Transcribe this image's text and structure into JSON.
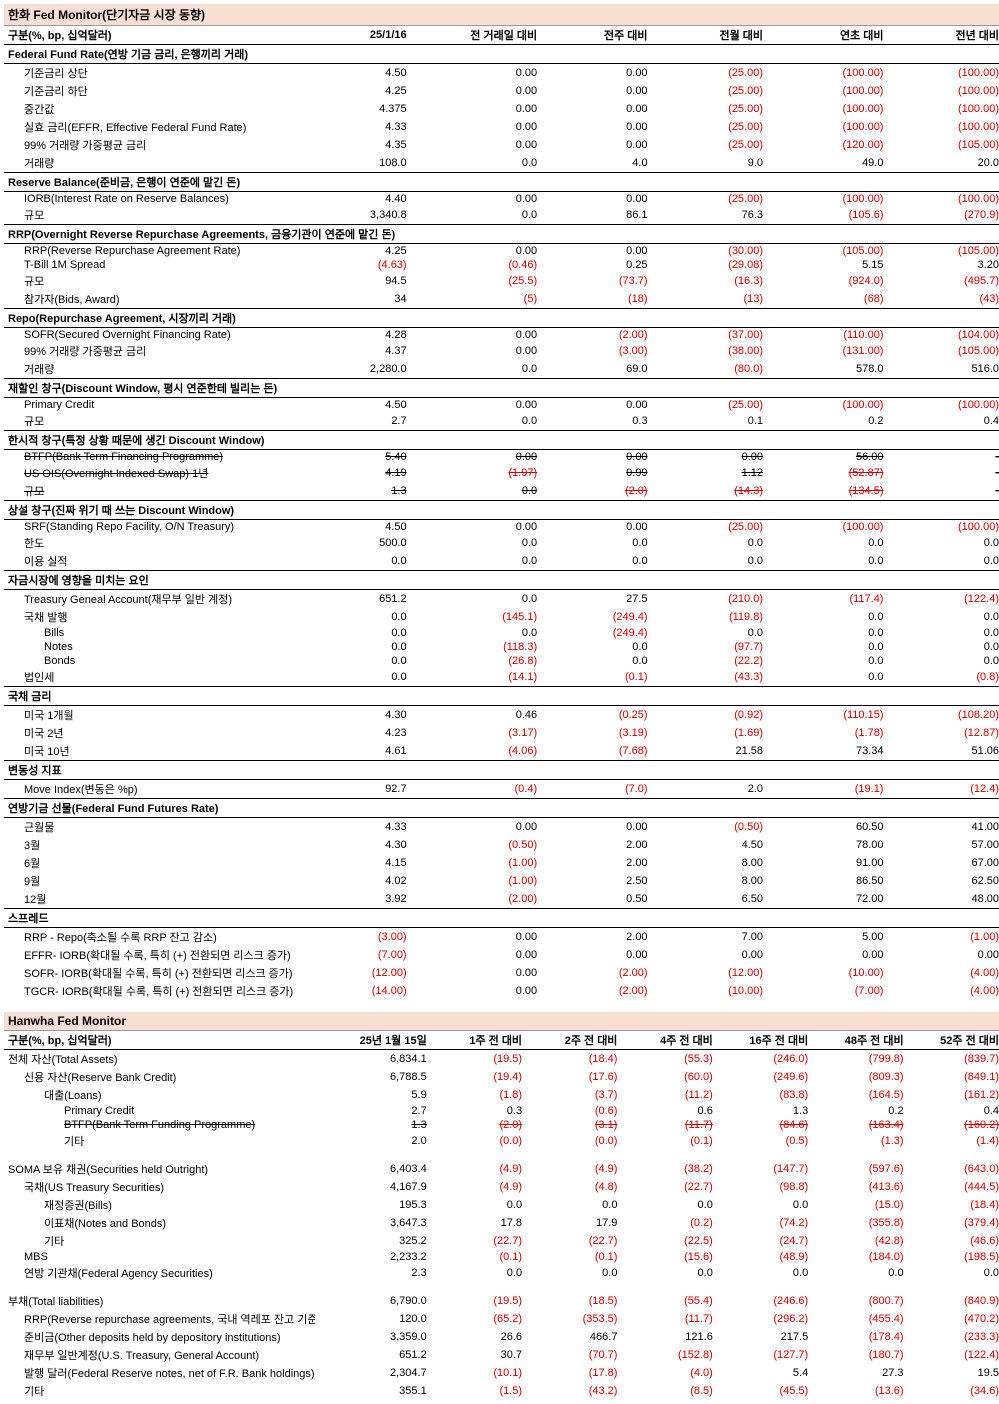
{
  "t1": {
    "title": "한화 Fed Monitor(단기자금 시장 동향)",
    "headers": [
      "구분(%, bp, 십억달러)",
      "25/1/16",
      "전 거래일 대비",
      "전주 대비",
      "전월 대비",
      "연초 대비",
      "전년 대비"
    ],
    "widths": [
      310,
      95,
      130,
      110,
      115,
      120,
      115
    ],
    "sections": [
      {
        "head": "Federal Fund Rate(연방 기금 금리, 은행끼리 거래)",
        "rows": [
          {
            "l": "기준금리 상단",
            "i": 1,
            "v": [
              "4.50",
              "0.00",
              "0.00",
              "(25.00)",
              "(100.00)",
              "(100.00)"
            ]
          },
          {
            "l": "기준금리 하단",
            "i": 1,
            "v": [
              "4.25",
              "0.00",
              "0.00",
              "(25.00)",
              "(100.00)",
              "(100.00)"
            ]
          },
          {
            "l": "중간값",
            "i": 1,
            "v": [
              "4.375",
              "0.00",
              "0.00",
              "(25.00)",
              "(100.00)",
              "(100.00)"
            ]
          },
          {
            "l": "실효 금리(EFFR, Effective Federal Fund Rate)",
            "i": 1,
            "v": [
              "4.33",
              "0.00",
              "0.00",
              "(25.00)",
              "(100.00)",
              "(100.00)"
            ]
          },
          {
            "l": "99% 거래량 가중평균 금리",
            "i": 1,
            "v": [
              "4.35",
              "0.00",
              "0.00",
              "(25.00)",
              "(120.00)",
              "(105.00)"
            ]
          },
          {
            "l": "거래량",
            "i": 1,
            "v": [
              "108.0",
              "0.0",
              "4.0",
              "9.0",
              "49.0",
              "20.0"
            ]
          }
        ]
      },
      {
        "head": "Reserve Balance(준비금, 은행이 연준에 맡긴 돈)",
        "rows": [
          {
            "l": "IORB(Interest Rate on Reserve Balances)",
            "i": 1,
            "v": [
              "4.40",
              "0.00",
              "0.00",
              "(25.00)",
              "(100.00)",
              "(100.00)"
            ]
          },
          {
            "l": "규모",
            "i": 1,
            "v": [
              "3,340.8",
              "0.0",
              "86.1",
              "76.3",
              "(105.6)",
              "(270.9)"
            ]
          }
        ]
      },
      {
        "head": "RRP(Overnight Reverse Repurchase Agreements, 금융기관이 연준에 맡긴 돈)",
        "rows": [
          {
            "l": "RRP(Reverse Repurchase Agreement Rate)",
            "i": 1,
            "v": [
              "4.25",
              "0.00",
              "0.00",
              "(30.00)",
              "(105.00)",
              "(105.00)"
            ]
          },
          {
            "l": "T-Bill 1M Spread",
            "i": 1,
            "v": [
              "(4.63)",
              "(0.46)",
              "0.25",
              "(29.08)",
              "5.15",
              "3.20"
            ]
          },
          {
            "l": "규모",
            "i": 1,
            "v": [
              "94.5",
              "(25.5)",
              "(73.7)",
              "(16.3)",
              "(924.0)",
              "(495.7)"
            ]
          },
          {
            "l": "참가자(Bids, Award)",
            "i": 1,
            "v": [
              "34",
              "(5)",
              "(18)",
              "(13)",
              "(68)",
              "(43)"
            ]
          }
        ]
      },
      {
        "head": "Repo(Repurchase Agreement, 시장끼리 거래)",
        "rows": [
          {
            "l": "SOFR(Secured Overnight Financing Rate)",
            "i": 1,
            "v": [
              "4.28",
              "0.00",
              "(2.00)",
              "(37.00)",
              "(110.00)",
              "(104.00)"
            ]
          },
          {
            "l": "99% 거래량 가중평균 금리",
            "i": 1,
            "v": [
              "4.37",
              "0.00",
              "(3.00)",
              "(38.00)",
              "(131.00)",
              "(105.00)"
            ]
          },
          {
            "l": "거래량",
            "i": 1,
            "v": [
              "2,280.0",
              "0.0",
              "69.0",
              "(80.0)",
              "578.0",
              "516.0"
            ]
          }
        ]
      },
      {
        "head": "재할인 창구(Discount Window, 평시 연준한테 빌리는 돈)",
        "rows": [
          {
            "l": "Primary Credit",
            "i": 1,
            "v": [
              "4.50",
              "0.00",
              "0.00",
              "(25.00)",
              "(100.00)",
              "(100.00)"
            ]
          },
          {
            "l": "규모",
            "i": 1,
            "v": [
              "2.7",
              "0.0",
              "0.3",
              "0.1",
              "0.2",
              "0.4"
            ]
          }
        ]
      },
      {
        "head": "한시적 창구(특정 상황 때문에 생긴 Discount Window)",
        "rows": [
          {
            "l": "BTFP(Bank Term Financing Programme)",
            "i": 1,
            "s": true,
            "v": [
              "5.40",
              "0.00",
              "0.00",
              "0.00",
              "56.00",
              "-"
            ]
          },
          {
            "l": "US OIS(Overnight Indexed Swap) 1년",
            "i": 1,
            "s": true,
            "v": [
              "4.19",
              "(1.97)",
              "0.99",
              "1.12",
              "(52.87)",
              "-"
            ]
          },
          {
            "l": "규모",
            "i": 1,
            "s": true,
            "v": [
              "1.3",
              "0.0",
              "(2.0)",
              "(14.3)",
              "(134.5)",
              "-"
            ]
          }
        ]
      },
      {
        "head": "상설 창구(진짜 위기 때 쓰는 Discount Window)",
        "rows": [
          {
            "l": "SRF(Standing Repo Facility, O/N Treasury)",
            "i": 1,
            "v": [
              "4.50",
              "0.00",
              "0.00",
              "(25.00)",
              "(100.00)",
              "(100.00)"
            ]
          },
          {
            "l": "한도",
            "i": 1,
            "v": [
              "500.0",
              "0.0",
              "0.0",
              "0.0",
              "0.0",
              "0.0"
            ]
          },
          {
            "l": "이용 실적",
            "i": 1,
            "v": [
              "0.0",
              "0.0",
              "0.0",
              "0.0",
              "0.0",
              "0.0"
            ]
          }
        ]
      },
      {
        "head": "자금시장에 영향을 미치는 요인",
        "rows": [
          {
            "l": "Treasury Geneal Account(재무부 일반 계정)",
            "i": 1,
            "v": [
              "651.2",
              "0.0",
              "27.5",
              "(210.0)",
              "(117.4)",
              "(122.4)"
            ]
          },
          {
            "l": "국채 발행",
            "i": 1,
            "v": [
              "0.0",
              "(145.1)",
              "(249.4)",
              "(119.8)",
              "0.0",
              "0.0"
            ]
          },
          {
            "l": "Bills",
            "i": 2,
            "v": [
              "0.0",
              "0.0",
              "(249.4)",
              "0.0",
              "0.0",
              "0.0"
            ]
          },
          {
            "l": "Notes",
            "i": 2,
            "v": [
              "0.0",
              "(118.3)",
              "0.0",
              "(97.7)",
              "0.0",
              "0.0"
            ]
          },
          {
            "l": "Bonds",
            "i": 2,
            "v": [
              "0.0",
              "(26.8)",
              "0.0",
              "(22.2)",
              "0.0",
              "0.0"
            ]
          },
          {
            "l": "법인세",
            "i": 1,
            "v": [
              "0.0",
              "(14.1)",
              "(0.1)",
              "(43.3)",
              "0.0",
              "(0.8)"
            ]
          }
        ]
      },
      {
        "head": "국채 금리",
        "rows": [
          {
            "l": "미국 1개월",
            "i": 1,
            "v": [
              "4.30",
              "0.46",
              "(0.25)",
              "(0.92)",
              "(110.15)",
              "(108.20)"
            ]
          },
          {
            "l": "미국 2년",
            "i": 1,
            "v": [
              "4.23",
              "(3.17)",
              "(3.19)",
              "(1.69)",
              "(1.78)",
              "(12.87)"
            ]
          },
          {
            "l": "미국 10년",
            "i": 1,
            "v": [
              "4.61",
              "(4.06)",
              "(7.68)",
              "21.58",
              "73.34",
              "51.06"
            ]
          }
        ]
      },
      {
        "head": "변동성 지표",
        "rows": [
          {
            "l": "Move Index(변동은 %p)",
            "i": 1,
            "v": [
              "92.7",
              "(0.4)",
              "(7.0)",
              "2.0",
              "(19.1)",
              "(12.4)"
            ]
          }
        ]
      },
      {
        "head": "연방기금 선물(Federal Fund Futures Rate)",
        "rows": [
          {
            "l": "근월물",
            "i": 1,
            "v": [
              "4.33",
              "0.00",
              "0.00",
              "(0.50)",
              "60.50",
              "41.00"
            ]
          },
          {
            "l": "3월",
            "i": 1,
            "v": [
              "4.30",
              "(0.50)",
              "2.00",
              "4.50",
              "78.00",
              "57.00"
            ]
          },
          {
            "l": "6월",
            "i": 1,
            "v": [
              "4.15",
              "(1.00)",
              "2.00",
              "8.00",
              "91.00",
              "67.00"
            ]
          },
          {
            "l": "9월",
            "i": 1,
            "v": [
              "4.02",
              "(1.00)",
              "2.50",
              "8.00",
              "86.50",
              "62.50"
            ]
          },
          {
            "l": "12월",
            "i": 1,
            "v": [
              "3.92",
              "(2.00)",
              "0.50",
              "6.50",
              "72.00",
              "48.00"
            ]
          }
        ]
      },
      {
        "head": "스프레드",
        "rows": [
          {
            "l": "RRP - Repo(축소될 수록 RRP 잔고 감소)",
            "i": 1,
            "v": [
              "(3.00)",
              "0.00",
              "2.00",
              "7.00",
              "5.00",
              "(1.00)"
            ]
          },
          {
            "l": "EFFR- IORB(확대될 수록, 특히 (+) 전환되면 리스크 증가)",
            "i": 1,
            "v": [
              "(7.00)",
              "0.00",
              "0.00",
              "0.00",
              "0.00",
              "0.00"
            ]
          },
          {
            "l": "SOFR- IORB(확대될 수록, 특히 (+) 전환되면 리스크 증가)",
            "i": 1,
            "v": [
              "(12.00)",
              "0.00",
              "(2.00)",
              "(12.00)",
              "(10.00)",
              "(4.00)"
            ]
          },
          {
            "l": "TGCR- IORB(확대될 수록, 특히 (+) 전환되면 리스크 증가)",
            "i": 1,
            "v": [
              "(14.00)",
              "0.00",
              "(2.00)",
              "(10.00)",
              "(7.00)",
              "(4.00)"
            ]
          }
        ]
      }
    ]
  },
  "t2": {
    "title": "Hanwha Fed Monitor",
    "headers": [
      "구분(%, bp, 십억달러)",
      "25년 1월 15일",
      "1주 전 대비",
      "2주 전 대비",
      "4주 전 대비",
      "16주 전 대비",
      "48주 전 대비",
      "52주 전 대비"
    ],
    "widths": [
      310,
      115,
      95,
      95,
      95,
      95,
      95,
      95
    ],
    "rows": [
      {
        "l": "전체 자산(Total Assets)",
        "i": 0,
        "v": [
          "6,834.1",
          "(19.5)",
          "(18.4)",
          "(55.3)",
          "(246.0)",
          "(799.8)",
          "(839.7)"
        ]
      },
      {
        "l": "신용 자산(Reserve Bank Credit)",
        "i": 1,
        "v": [
          "6,788.5",
          "(19.4)",
          "(17.6)",
          "(60.0)",
          "(249.6)",
          "(809.3)",
          "(849.1)"
        ]
      },
      {
        "l": "대출(Loans)",
        "i": 2,
        "v": [
          "5.9",
          "(1.8)",
          "(3.7)",
          "(11.2)",
          "(83.8)",
          "(164.5)",
          "(161.2)"
        ]
      },
      {
        "l": "Primary Credit",
        "i": 3,
        "v": [
          "2.7",
          "0.3",
          "(0.6)",
          "0.6",
          "1.3",
          "0.2",
          "0.4"
        ]
      },
      {
        "l": "BTFP(Bank Term Funding Programme)",
        "i": 3,
        "s": true,
        "v": [
          "1.3",
          "(2.0)",
          "(3.1)",
          "(11.7)",
          "(84.6)",
          "(163.4)",
          "(160.2)"
        ]
      },
      {
        "l": "기타",
        "i": 3,
        "v": [
          "2.0",
          "(0.0)",
          "(0.0)",
          "(0.1)",
          "(0.5)",
          "(1.3)",
          "(1.4)"
        ]
      },
      {
        "gap": true
      },
      {
        "l": "SOMA 보유 채권(Securities held Outright)",
        "i": 0,
        "v": [
          "6,403.4",
          "(4.9)",
          "(4.9)",
          "(38.2)",
          "(147.7)",
          "(597.6)",
          "(643.0)"
        ]
      },
      {
        "l": "국채(US Treasury Securities)",
        "i": 1,
        "v": [
          "4,167.9",
          "(4.9)",
          "(4.8)",
          "(22.7)",
          "(98.8)",
          "(413.6)",
          "(444.5)"
        ]
      },
      {
        "l": "재정증권(Bills)",
        "i": 2,
        "v": [
          "195.3",
          "0.0",
          "0.0",
          "0.0",
          "0.0",
          "(15.0)",
          "(18.4)"
        ]
      },
      {
        "l": "이표채(Notes and Bonds)",
        "i": 2,
        "v": [
          "3,647.3",
          "17.8",
          "17.9",
          "(0.2)",
          "(74.2)",
          "(355.8)",
          "(379.4)"
        ]
      },
      {
        "l": "기타",
        "i": 2,
        "v": [
          "325.2",
          "(22.7)",
          "(22.7)",
          "(22.5)",
          "(24.7)",
          "(42.8)",
          "(46.6)"
        ]
      },
      {
        "l": "MBS",
        "i": 1,
        "v": [
          "2,233.2",
          "(0.1)",
          "(0.1)",
          "(15.6)",
          "(48.9)",
          "(184.0)",
          "(198.5)"
        ]
      },
      {
        "l": "연방 기관채(Federal Agency Securities)",
        "i": 1,
        "v": [
          "2.3",
          "0.0",
          "0.0",
          "0.0",
          "0.0",
          "0.0",
          "0.0"
        ]
      },
      {
        "gap": true
      },
      {
        "l": "부채(Total liabilities)",
        "i": 0,
        "v": [
          "6,790.0",
          "(19.5)",
          "(18.5)",
          "(55.4)",
          "(246.6)",
          "(800.7)",
          "(840.9)"
        ]
      },
      {
        "l": "RRP(Reverse repurchase agreements, 국내 역레포 잔고 기준)",
        "i": 1,
        "v": [
          "120.0",
          "(65.2)",
          "(353.5)",
          "(11.7)",
          "(296.2)",
          "(455.4)",
          "(470.2)"
        ]
      },
      {
        "l": "준비금(Other deposits held by depository institutions)",
        "i": 1,
        "v": [
          "3,359.0",
          "26.6",
          "466.7",
          "121.6",
          "217.5",
          "(178.4)",
          "(233.3)"
        ]
      },
      {
        "l": "재무부 일반계정(U.S. Treasury, General Account)",
        "i": 1,
        "v": [
          "651.2",
          "30.7",
          "(70.7)",
          "(152.8)",
          "(127.7)",
          "(180.7)",
          "(122.4)"
        ]
      },
      {
        "l": "발행 달러(Federal Reserve notes, net of F.R. Bank holdings)",
        "i": 1,
        "v": [
          "2,304.7",
          "(10.1)",
          "(17.8)",
          "(4.0)",
          "5.4",
          "27.3",
          "19.5"
        ]
      },
      {
        "l": "기타",
        "i": 1,
        "v": [
          "355.1",
          "(1.5)",
          "(43.2)",
          "(8.5)",
          "(45.5)",
          "(13.6)",
          "(34.6)"
        ]
      }
    ]
  }
}
